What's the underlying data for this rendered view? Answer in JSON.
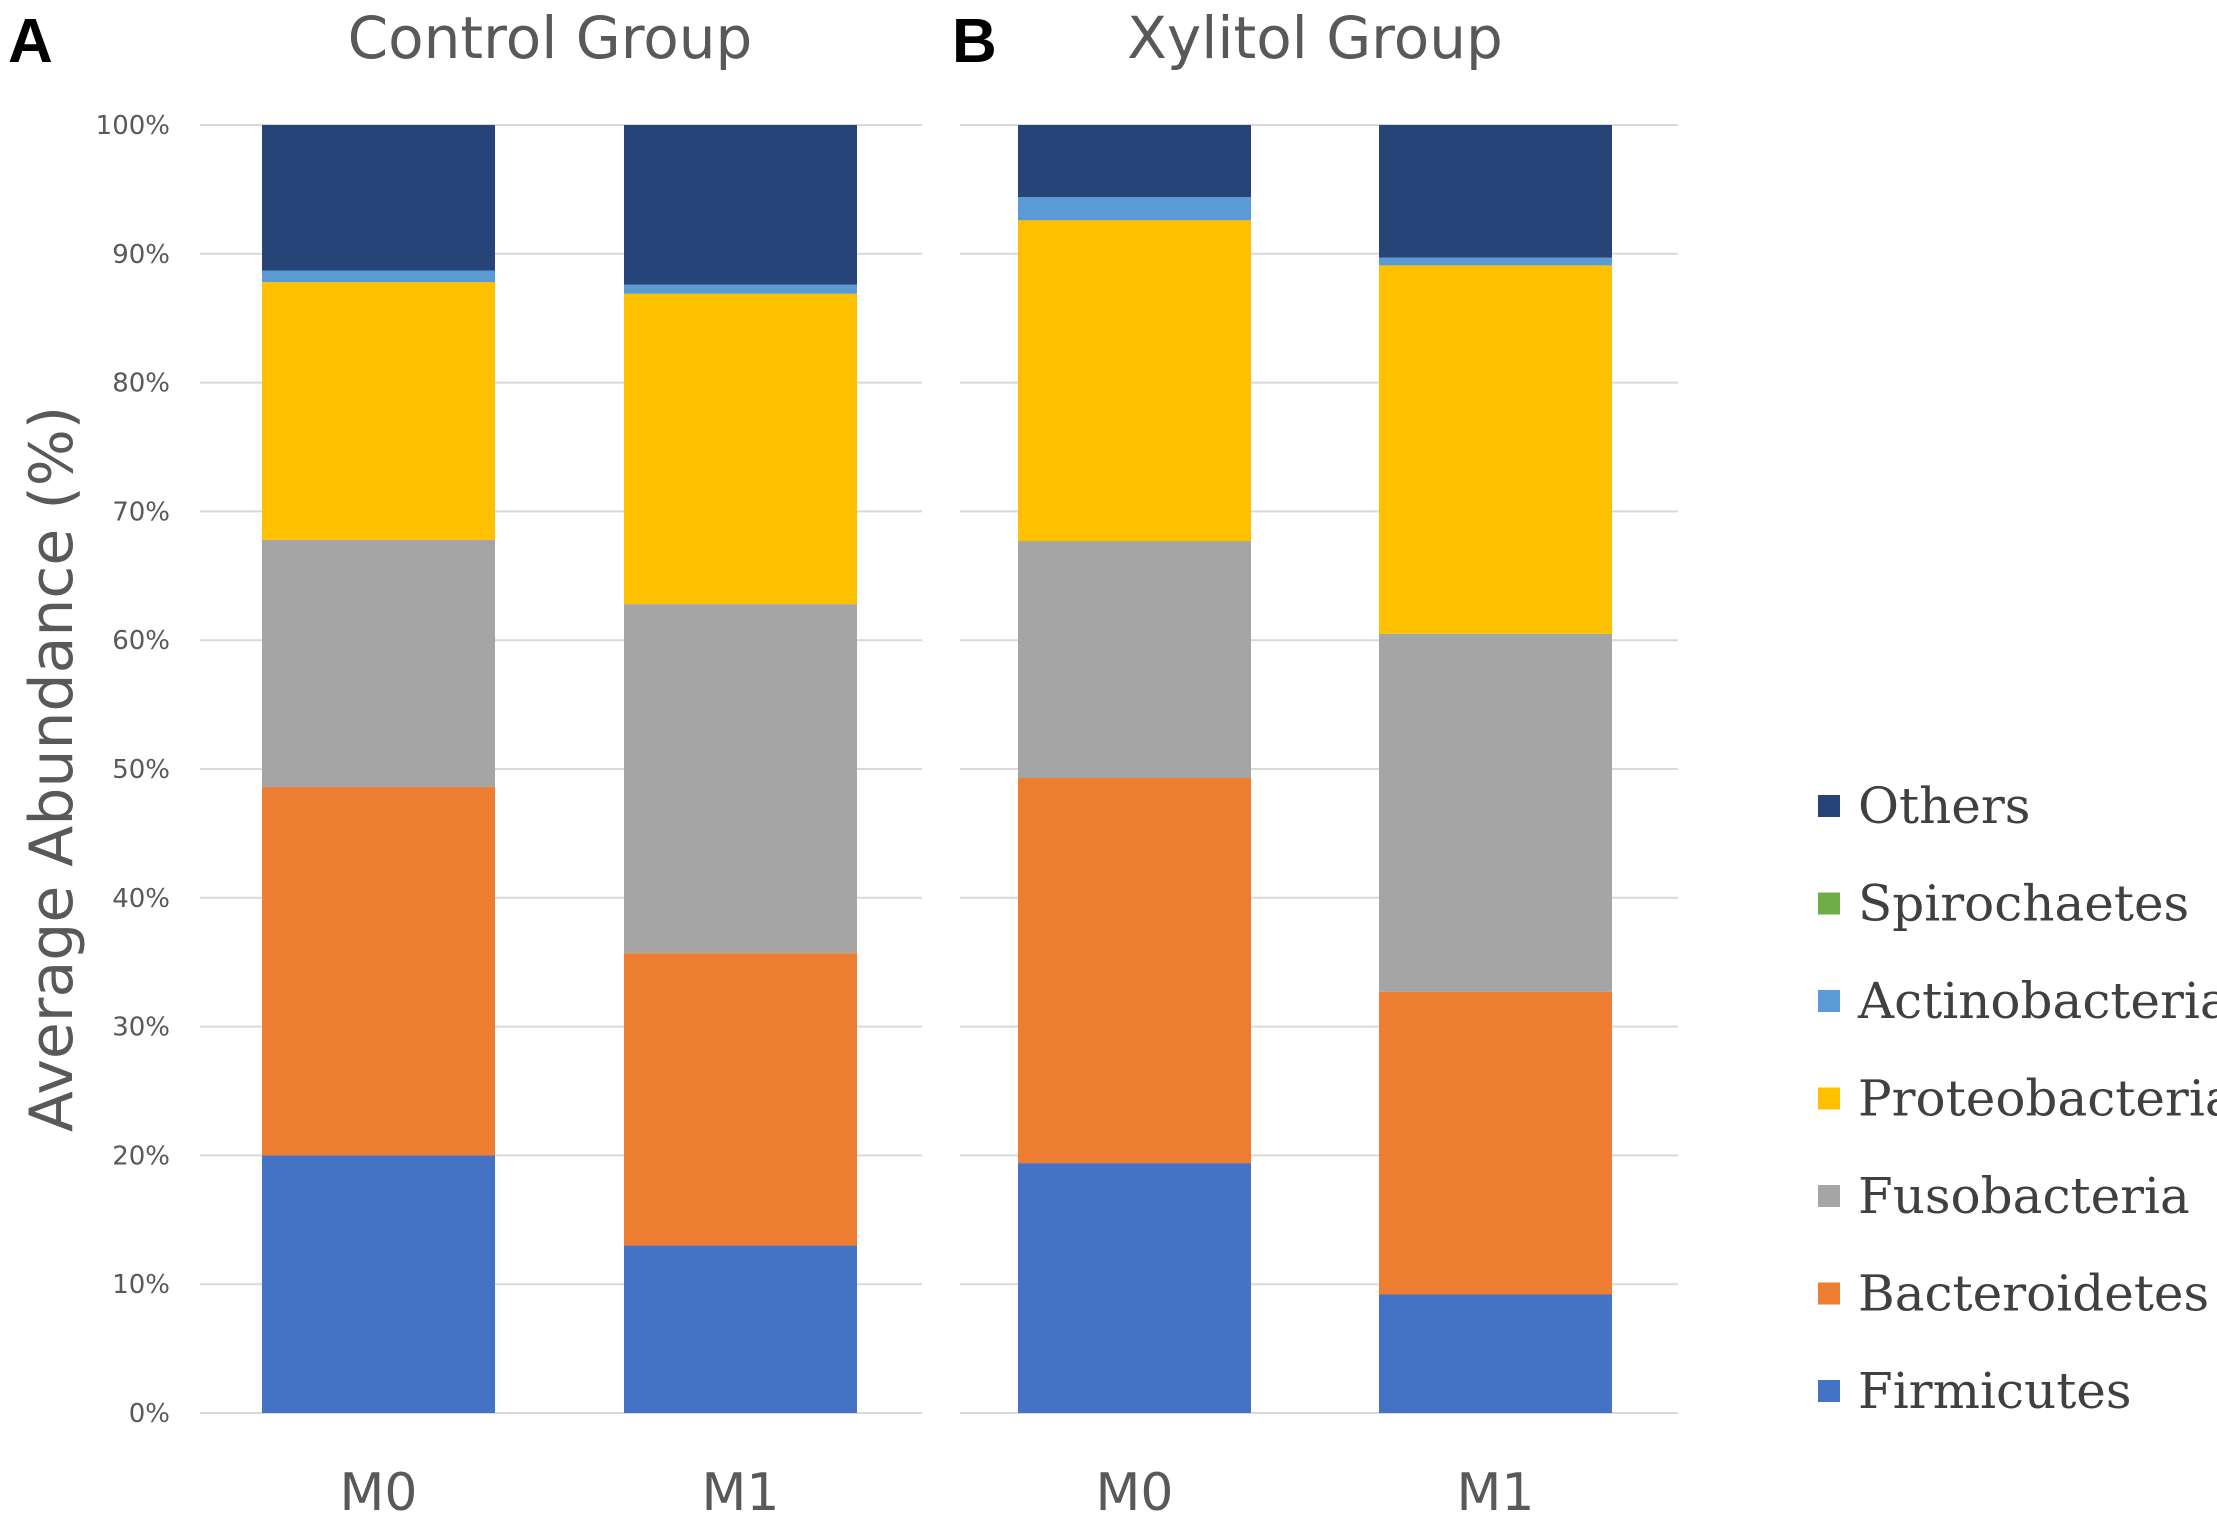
{
  "chart_data": {
    "type": "bar",
    "stacked": true,
    "ylabel": "Average Abundance (%)",
    "ylim": [
      0,
      100
    ],
    "y_ticks": [
      "0%",
      "10%",
      "20%",
      "30%",
      "40%",
      "50%",
      "60%",
      "70%",
      "80%",
      "90%",
      "100%"
    ],
    "legend_position": "right",
    "series_order": [
      "Firmicutes",
      "Bacteroidetes",
      "Fusobacteria",
      "Proteobacteria",
      "Actinobacteria",
      "Spirochaetes",
      "Others"
    ],
    "colors": {
      "Firmicutes": "#4472c4",
      "Bacteroidetes": "#ed7d31",
      "Fusobacteria": "#a5a5a5",
      "Proteobacteria": "#ffc000",
      "Actinobacteria": "#5b9bd5",
      "Spirochaetes": "#70ad47",
      "Others": "#264478"
    },
    "legend": [
      "Others",
      "Spirochaetes",
      "Actinobacteria",
      "Proteobacteria",
      "Fusobacteria",
      "Bacteroidetes",
      "Firmicutes"
    ],
    "panels": [
      {
        "label": "A",
        "title": "Control Group",
        "categories": [
          "M0",
          "M1"
        ],
        "series": [
          {
            "name": "Firmicutes",
            "values": [
              20.0,
              13.0
            ]
          },
          {
            "name": "Bacteroidetes",
            "values": [
              28.6,
              22.7
            ]
          },
          {
            "name": "Fusobacteria",
            "values": [
              19.2,
              27.1
            ]
          },
          {
            "name": "Proteobacteria",
            "values": [
              20.0,
              24.1
            ]
          },
          {
            "name": "Actinobacteria",
            "values": [
              0.9,
              0.7
            ]
          },
          {
            "name": "Spirochaetes",
            "values": [
              0.0,
              0.0
            ]
          },
          {
            "name": "Others",
            "values": [
              11.3,
              12.4
            ]
          }
        ]
      },
      {
        "label": "B",
        "title": "Xylitol Group",
        "categories": [
          "M0",
          "M1"
        ],
        "series": [
          {
            "name": "Firmicutes",
            "values": [
              19.4,
              9.2
            ]
          },
          {
            "name": "Bacteroidetes",
            "values": [
              29.9,
              23.5
            ]
          },
          {
            "name": "Fusobacteria",
            "values": [
              18.4,
              27.8
            ]
          },
          {
            "name": "Proteobacteria",
            "values": [
              24.9,
              28.6
            ]
          },
          {
            "name": "Actinobacteria",
            "values": [
              1.8,
              0.6
            ]
          },
          {
            "name": "Spirochaetes",
            "values": [
              0.0,
              0.0
            ]
          },
          {
            "name": "Others",
            "values": [
              5.6,
              10.3
            ]
          }
        ]
      }
    ]
  }
}
